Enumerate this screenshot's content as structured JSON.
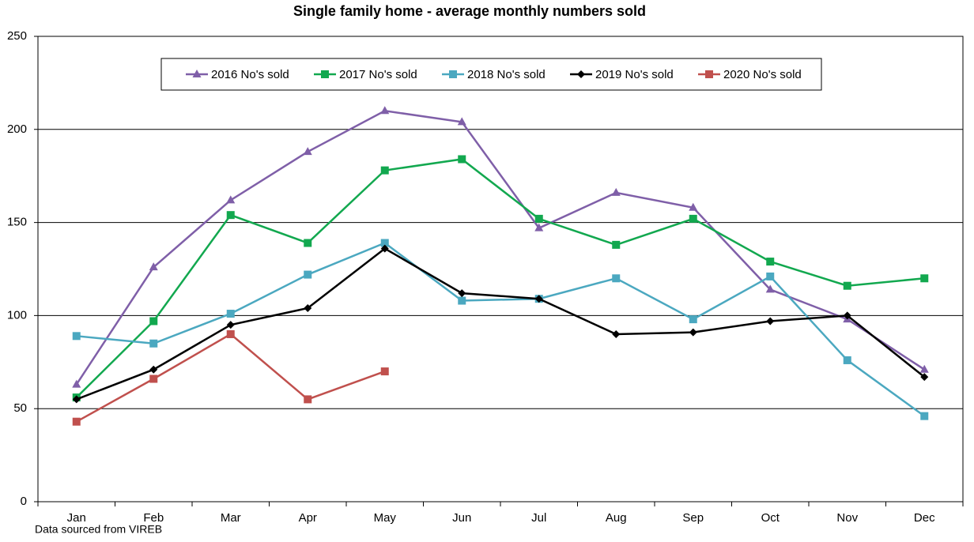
{
  "chart_data": {
    "type": "line",
    "title": "Single family home - average monthly numbers sold",
    "note": "Data sourced from VIREB",
    "categories": [
      "Jan",
      "Feb",
      "Mar",
      "Apr",
      "May",
      "Jun",
      "Jul",
      "Aug",
      "Sep",
      "Oct",
      "Nov",
      "Dec"
    ],
    "series": [
      {
        "name": "2016 No's sold",
        "color": "#7f5fa8",
        "marker": "triangle",
        "values": [
          63,
          126,
          162,
          188,
          210,
          204,
          147,
          166,
          158,
          114,
          98,
          71
        ]
      },
      {
        "name": "2017 No's sold",
        "color": "#12a84f",
        "marker": "square",
        "values": [
          56,
          97,
          154,
          139,
          178,
          184,
          152,
          138,
          152,
          129,
          116,
          120
        ]
      },
      {
        "name": "2018 No's sold",
        "color": "#4ba8c0",
        "marker": "square",
        "values": [
          89,
          85,
          101,
          122,
          139,
          108,
          109,
          120,
          98,
          121,
          76,
          46
        ]
      },
      {
        "name": "2019 No's sold",
        "color": "#000000",
        "marker": "diamond",
        "values": [
          55,
          71,
          95,
          104,
          136,
          112,
          109,
          90,
          91,
          97,
          100,
          67
        ]
      },
      {
        "name": "2020 No's sold",
        "color": "#c0504d",
        "marker": "square",
        "values": [
          43,
          66,
          90,
          55,
          70,
          null,
          null,
          null,
          null,
          null,
          null,
          null
        ]
      }
    ],
    "ylim": [
      0,
      250
    ],
    "yticks": [
      0,
      50,
      100,
      150,
      200,
      250
    ],
    "grid": true,
    "legend": "top"
  }
}
